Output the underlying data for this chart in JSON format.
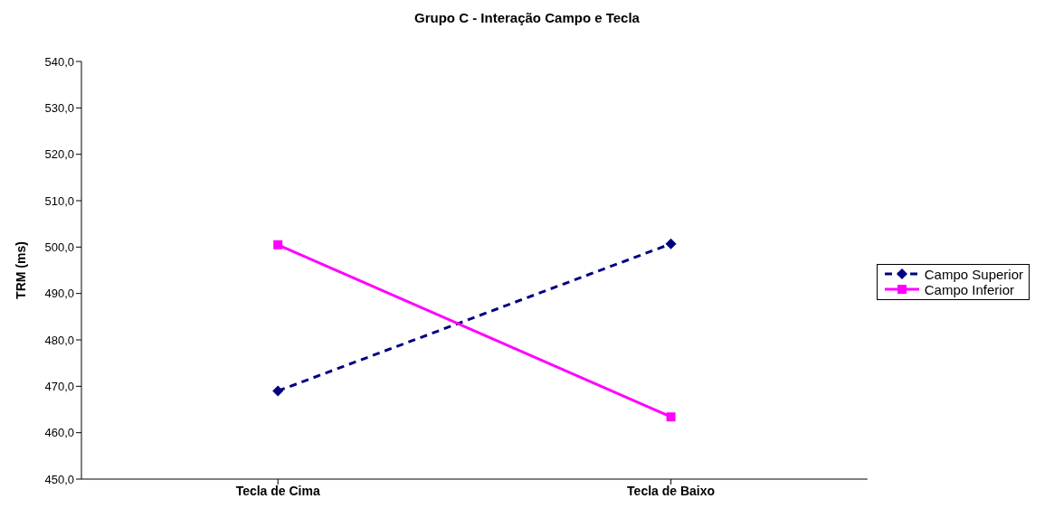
{
  "chart_data": {
    "type": "line",
    "title": "Grupo C - Interação Campo e Tecla",
    "ylabel": "TRM (ms)",
    "categories": [
      "Tecla de Cima",
      "Tecla de Baixo"
    ],
    "series": [
      {
        "name": "Campo Superior",
        "color": "#000080",
        "values": [
          469.0,
          500.7
        ],
        "marker": "diamond",
        "line_style": "dashed"
      },
      {
        "name": "Campo Inferior",
        "color": "#ff00ff",
        "values": [
          500.5,
          463.4
        ],
        "marker": "square",
        "line_style": "solid"
      }
    ],
    "ylim": [
      450,
      540
    ],
    "yticks": [
      {
        "value": 450,
        "label": "450,0"
      },
      {
        "value": 460,
        "label": "460,0"
      },
      {
        "value": 470,
        "label": "470,0"
      },
      {
        "value": 480,
        "label": "480,0"
      },
      {
        "value": 490,
        "label": "490,0"
      },
      {
        "value": 500,
        "label": "500,0"
      },
      {
        "value": 510,
        "label": "510,0"
      },
      {
        "value": 520,
        "label": "520,0"
      },
      {
        "value": 530,
        "label": "530,0"
      },
      {
        "value": 540,
        "label": "540,0"
      }
    ],
    "grid": false,
    "legend": "right"
  }
}
